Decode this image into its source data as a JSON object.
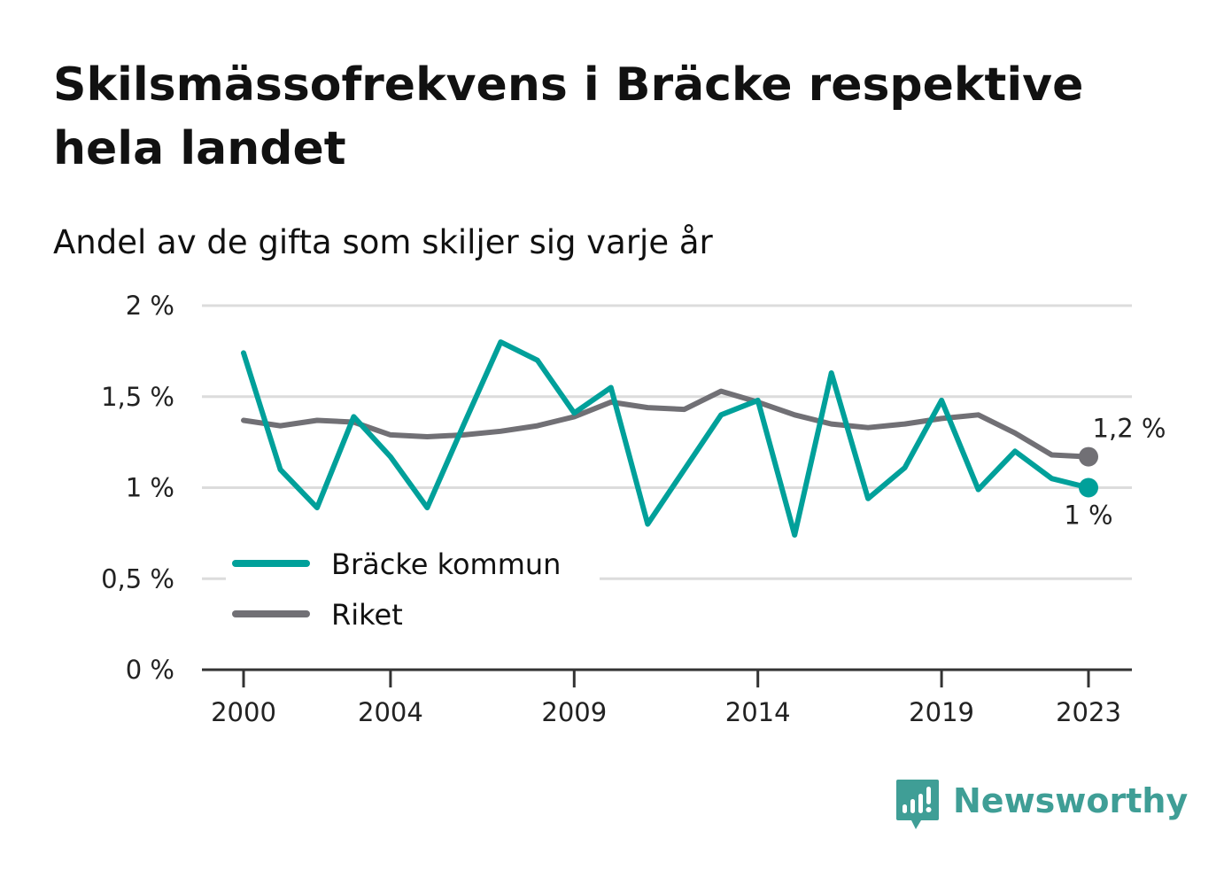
{
  "header": {
    "title": "Skilsmässofrekvens i Bräcke respektive hela landet",
    "subtitle": "Andel av de gifta som skiljer sig varje år"
  },
  "branding": {
    "name": "Newsworthy",
    "icon": "bar-chart-speech-bubble-icon",
    "color": "#3f9e96"
  },
  "chart_data": {
    "type": "line",
    "x": [
      2000,
      2001,
      2002,
      2003,
      2004,
      2005,
      2006,
      2007,
      2008,
      2009,
      2010,
      2011,
      2012,
      2013,
      2014,
      2015,
      2016,
      2017,
      2018,
      2019,
      2020,
      2021,
      2022,
      2023
    ],
    "x_ticks": [
      2000,
      2004,
      2009,
      2014,
      2019,
      2023
    ],
    "x_tick_labels": [
      "2000",
      "2004",
      "2009",
      "2014",
      "2019",
      "2023"
    ],
    "y_ticks": [
      0,
      0.5,
      1,
      1.5,
      2
    ],
    "y_tick_labels": [
      "0 %",
      "0,5 %",
      "1 %",
      "1,5 %",
      "2 %"
    ],
    "ylim": [
      0,
      2
    ],
    "grid": true,
    "legend_position": "bottom-left",
    "series": [
      {
        "name": "Bräcke kommun",
        "color": "#00a09a",
        "values": [
          1.74,
          1.1,
          0.89,
          1.39,
          1.17,
          0.89,
          1.35,
          1.8,
          1.7,
          1.41,
          1.55,
          0.8,
          1.1,
          1.4,
          1.48,
          0.74,
          1.63,
          0.94,
          1.11,
          1.48,
          0.99,
          1.2,
          1.05,
          1.0
        ],
        "end_label": "1 %"
      },
      {
        "name": "Riket",
        "color": "#717075",
        "values": [
          1.37,
          1.34,
          1.37,
          1.36,
          1.29,
          1.28,
          1.29,
          1.31,
          1.34,
          1.39,
          1.47,
          1.44,
          1.43,
          1.53,
          1.47,
          1.4,
          1.35,
          1.33,
          1.35,
          1.38,
          1.4,
          1.3,
          1.18,
          1.17
        ],
        "end_label": "1,2 %"
      }
    ]
  }
}
